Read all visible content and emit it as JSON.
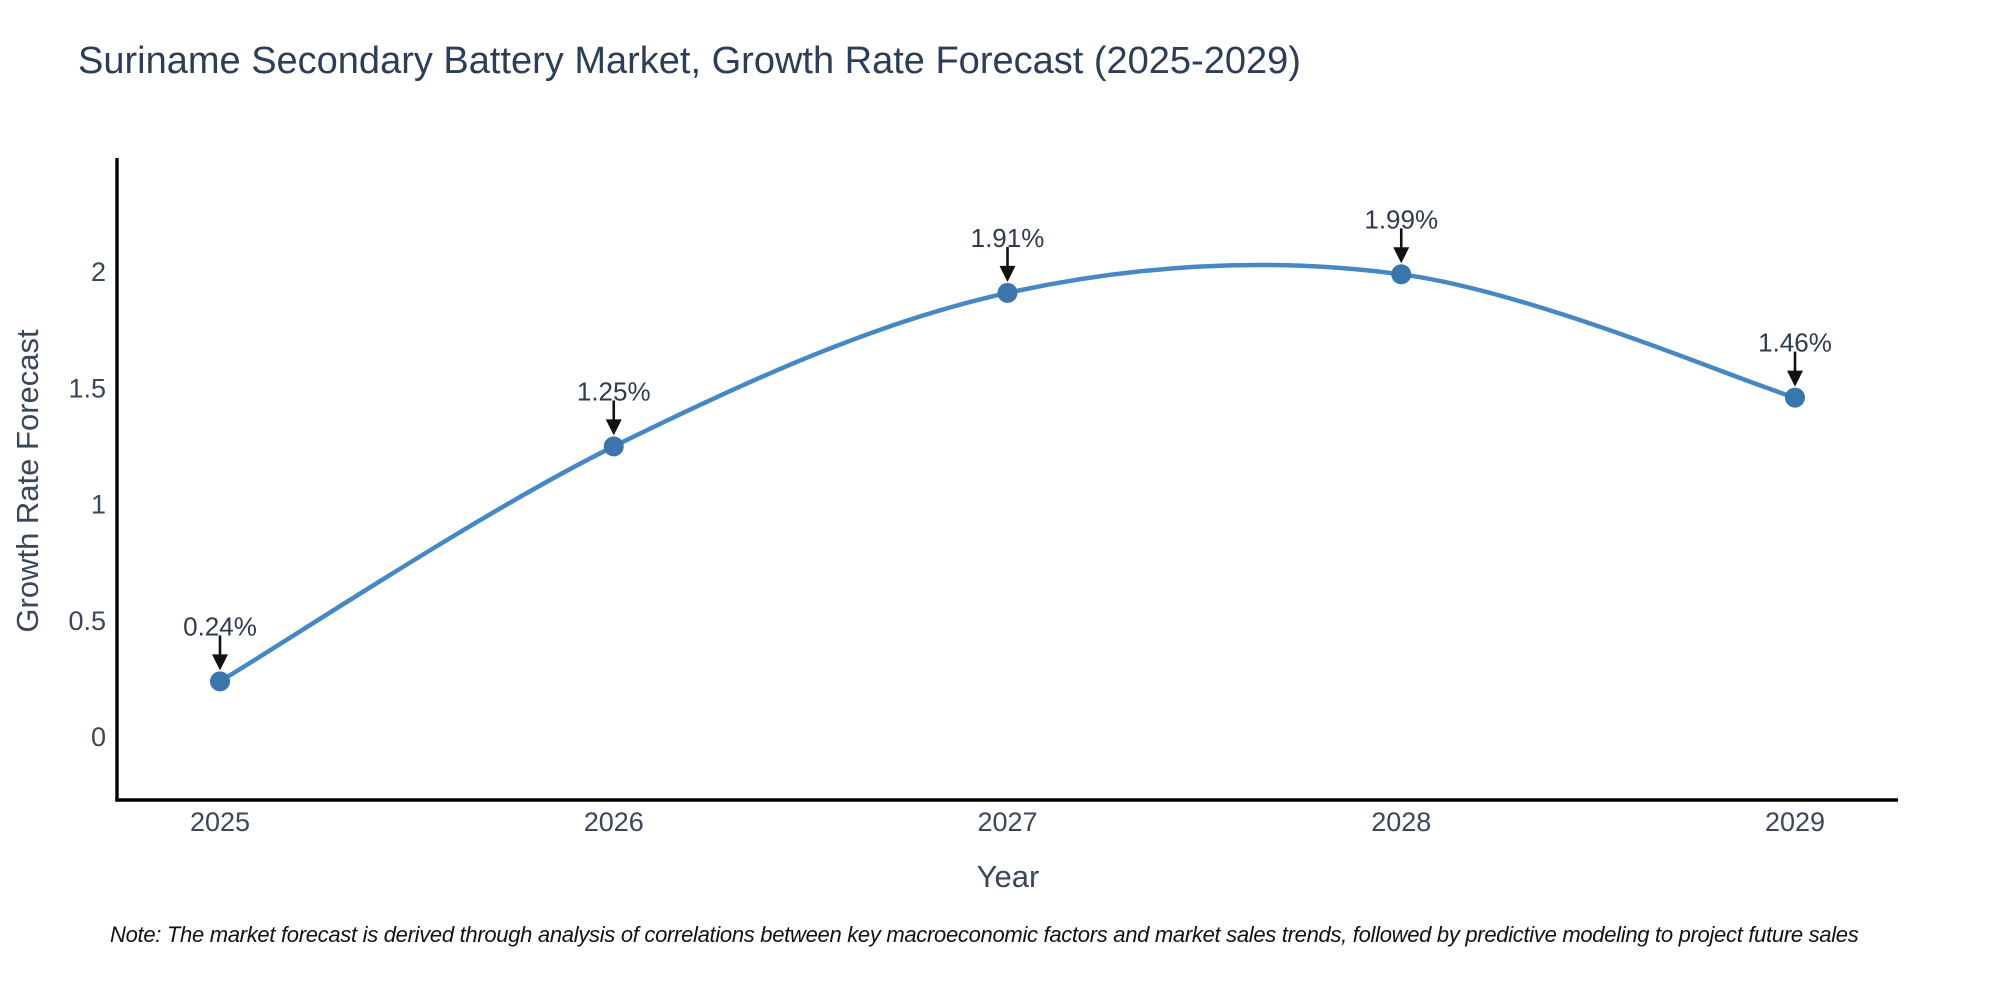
{
  "note": "Note: The market forecast is derived through analysis of correlations between key macroeconomic factors and market sales trends, followed by predictive modeling to project future sales",
  "chart_data": {
    "type": "line",
    "title": "Suriname Secondary Battery Market, Growth Rate Forecast (2025-2029)",
    "xlabel": "Year",
    "ylabel": "Growth Rate Forecast",
    "x": [
      2025,
      2026,
      2027,
      2028,
      2029
    ],
    "series": [
      {
        "name": "Growth Rate Forecast",
        "values": [
          0.24,
          1.25,
          1.91,
          1.99,
          1.46
        ],
        "point_labels": [
          "0.24%",
          "1.25%",
          "1.91%",
          "1.99%",
          "1.46%"
        ]
      }
    ],
    "xticklabels": [
      "2025",
      "2026",
      "2027",
      "2028",
      "2029"
    ],
    "yticks": [
      0,
      0.5,
      1,
      1.5,
      2
    ],
    "yticklabels": [
      "0",
      "0.5",
      "1",
      "1.5",
      "2"
    ],
    "ylim": [
      -0.27,
      2.49
    ],
    "grid": false,
    "legend": "none",
    "line_shape": "spline",
    "colors": {
      "line": "#4688c3",
      "marker": "#3a76ad",
      "axis": "#000000",
      "tick_text": "#3a4659",
      "annotation_text": "#2e3a4d",
      "annotation_arrow": "#111111"
    }
  }
}
